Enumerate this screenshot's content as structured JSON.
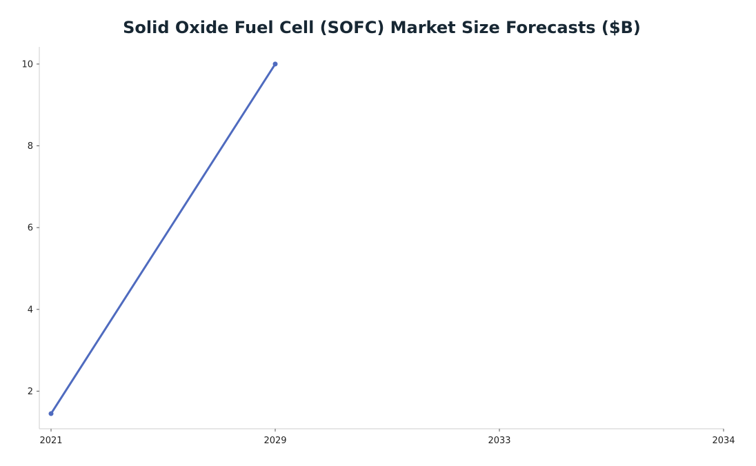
{
  "chart_data": {
    "type": "line",
    "title": "Solid Oxide Fuel Cell (SOFC) Market Size Forecasts ($B)",
    "xlabel": "",
    "ylabel": "",
    "x_ticks": [
      "2021",
      "2029",
      "2033",
      "2034"
    ],
    "y_ticks": [
      2,
      4,
      6,
      8,
      10
    ],
    "ylim": [
      1.08,
      10.42
    ],
    "x": [
      "2021",
      "2029"
    ],
    "values": [
      1.45,
      10.0
    ],
    "colors": {
      "line": "#4f6bbf",
      "axis": "#cccccc",
      "title": "#172733",
      "tick_text": "#222222"
    },
    "grid": false,
    "legend": "none"
  }
}
